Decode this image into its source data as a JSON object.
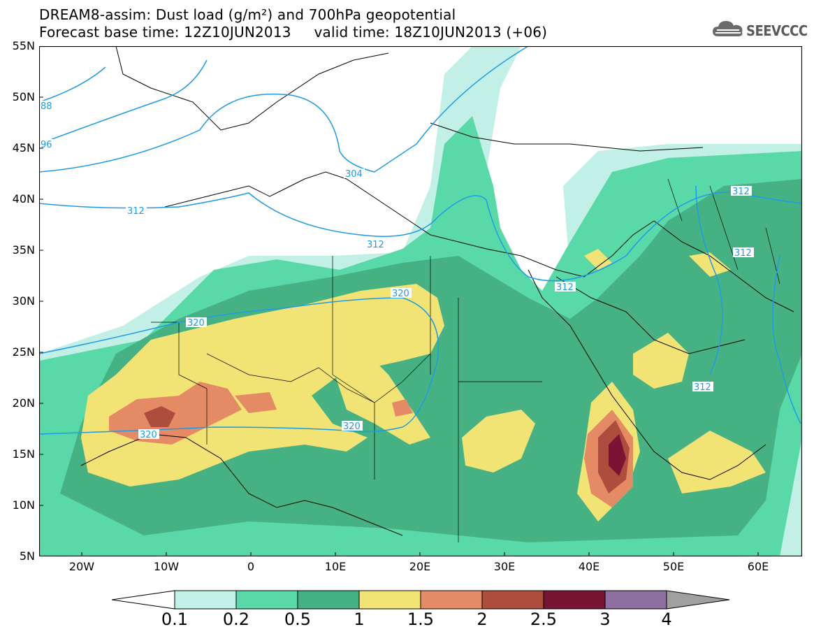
{
  "header": {
    "title_line1": "DREAM8-assim: Dust load (g/m²) and 700hPa geopotential",
    "title_line2": "Forecast base time: 12Z10JUN2013     valid time: 18Z10JUN2013 (+06)"
  },
  "logo": {
    "text": "SEEVCCC",
    "icon": "cloud-icon",
    "color": "#595959"
  },
  "map": {
    "lat_labels": [
      "55N",
      "50N",
      "45N",
      "40N",
      "35N",
      "30N",
      "25N",
      "20N",
      "15N",
      "10N",
      "5N"
    ],
    "lon_labels": [
      "20W",
      "10W",
      "0",
      "10E",
      "20E",
      "30E",
      "40E",
      "50E",
      "60E"
    ],
    "contour_labels": [
      "88",
      "96",
      "304",
      "312",
      "312",
      "312",
      "312",
      "312",
      "320",
      "320",
      "320",
      "320"
    ],
    "contour_color": "#1e9be6"
  },
  "colorbar": {
    "labels": [
      "0.1",
      "0.2",
      "0.5",
      "1",
      "1.5",
      "2",
      "2.5",
      "3",
      "4"
    ],
    "colors": [
      "#ffffff",
      "#c2f0e6",
      "#5ad9a8",
      "#46b284",
      "#f2e375",
      "#e48b66",
      "#ad4d3e",
      "#7a1435",
      "#8d6fa0",
      "#a0a0a0"
    ]
  }
}
